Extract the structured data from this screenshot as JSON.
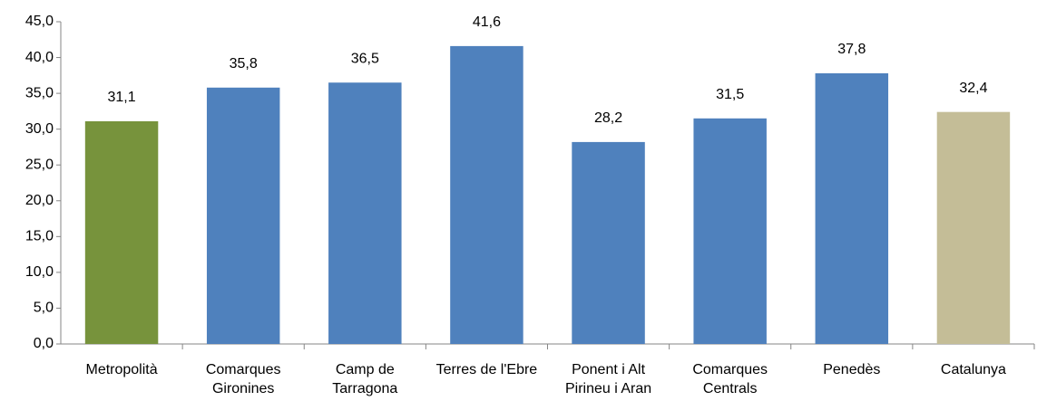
{
  "chart_data": {
    "type": "bar",
    "categories": [
      "Metropolità",
      "Comarques Gironines",
      "Camp de Tarragona",
      "Terres de l'Ebre",
      "Ponent i Alt Pirineu i Aran",
      "Comarques Centrals",
      "Penedès",
      "Catalunya"
    ],
    "values": [
      31.1,
      35.8,
      36.5,
      41.6,
      28.2,
      31.5,
      37.8,
      32.4
    ],
    "value_labels": [
      "31,1",
      "35,8",
      "36,5",
      "41,6",
      "28,2",
      "31,5",
      "37,8",
      "32,4"
    ],
    "colors": [
      "#77933c",
      "#4f81bd",
      "#4f81bd",
      "#4f81bd",
      "#4f81bd",
      "#4f81bd",
      "#4f81bd",
      "#c4bd97"
    ],
    "ylim": [
      0,
      45
    ],
    "yticks": [
      {
        "value": 0,
        "label": "0,0"
      },
      {
        "value": 5,
        "label": "5,0"
      },
      {
        "value": 10,
        "label": "10,0"
      },
      {
        "value": 15,
        "label": "15,0"
      },
      {
        "value": 20,
        "label": "20,0"
      },
      {
        "value": 25,
        "label": "25,0"
      },
      {
        "value": 30,
        "label": "30,0"
      },
      {
        "value": 35,
        "label": "35,0"
      },
      {
        "value": 40,
        "label": "40,0"
      },
      {
        "value": 45,
        "label": "45,0"
      }
    ],
    "grid": false
  }
}
